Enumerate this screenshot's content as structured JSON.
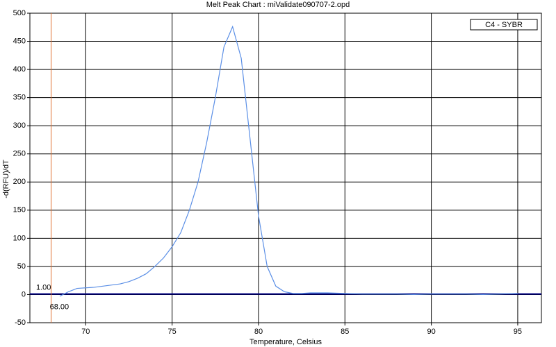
{
  "chart_data": {
    "type": "line",
    "title": "Melt Peak Chart : miValidate090707-2.opd",
    "x_label": "Temperature, Celsius",
    "y_label": "-d(RFU)/dT",
    "x": [
      68.5,
      69,
      69.5,
      70,
      70.5,
      71,
      71.5,
      72,
      72.5,
      73,
      73.5,
      74,
      74.5,
      75,
      75.5,
      76,
      76.5,
      77,
      77.5,
      78,
      78.5,
      79,
      79.5,
      80,
      80.5,
      81,
      81.5,
      82,
      82.5,
      83,
      84,
      85,
      86,
      87,
      88,
      89,
      90,
      91,
      92,
      93,
      94,
      95
    ],
    "series": [
      {
        "name": "C4 - SYBR",
        "color": "#5b8fe6",
        "values": [
          -3,
          5,
          11,
          12,
          13,
          15,
          17,
          19,
          23,
          29,
          37,
          50,
          65,
          85,
          110,
          150,
          200,
          270,
          350,
          440,
          476,
          420,
          280,
          140,
          50,
          15,
          5,
          2,
          2,
          3,
          3,
          2,
          1,
          1,
          1,
          0,
          1,
          1,
          1,
          0,
          1,
          2
        ]
      }
    ],
    "xlim": [
      66.77,
      96.37
    ],
    "ylim": [
      -50,
      500
    ],
    "xticks": [
      70,
      75,
      80,
      85,
      90,
      95
    ],
    "yticks": [
      -50,
      0,
      50,
      100,
      150,
      200,
      250,
      300,
      350,
      400,
      450,
      500
    ],
    "grid": true,
    "legend": "upper right",
    "threshold_x": {
      "value": 68,
      "label": "68.00",
      "color": "#e07030"
    },
    "threshold_y": {
      "value": 1,
      "label": "1.00",
      "color": "#000080"
    }
  }
}
